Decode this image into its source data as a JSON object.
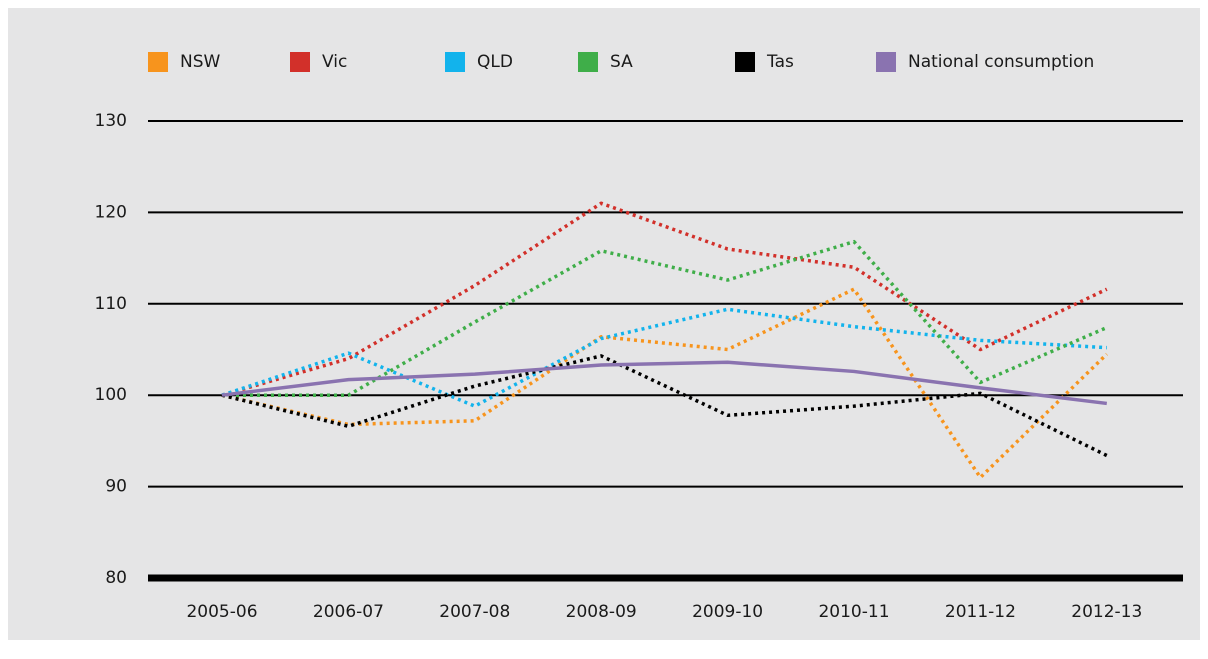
{
  "chart_data": {
    "type": "line",
    "categories": [
      "2005-06",
      "2006-07",
      "2007-08",
      "2008-09",
      "2009-10",
      "2010-11",
      "2011-12",
      "2012-13"
    ],
    "series": [
      {
        "name": "NSW",
        "color": "#f7941d",
        "dashed": true,
        "values": [
          100,
          96.8,
          97.2,
          106.4,
          105,
          111.6,
          91,
          104.5
        ]
      },
      {
        "name": "Vic",
        "color": "#d2302a",
        "dashed": true,
        "values": [
          100,
          104,
          112,
          121,
          116,
          114,
          105,
          111.6
        ]
      },
      {
        "name": "QLD",
        "color": "#12b3ec",
        "dashed": true,
        "values": [
          100,
          104.6,
          98.8,
          106.2,
          109.4,
          107.5,
          106,
          105.2
        ]
      },
      {
        "name": "SA",
        "color": "#3fae49",
        "dashed": true,
        "values": [
          100,
          100,
          108,
          115.8,
          112.6,
          116.8,
          101.4,
          107.4
        ]
      },
      {
        "name": "Tas",
        "color": "#000000",
        "dashed": true,
        "values": [
          100,
          96.6,
          101,
          104.3,
          97.8,
          98.8,
          100.2,
          93.4
        ]
      },
      {
        "name": "National consumption",
        "color": "#8a73b0",
        "dashed": false,
        "values": [
          100,
          101.7,
          102.3,
          103.3,
          103.6,
          102.6,
          100.8,
          99.1
        ]
      }
    ],
    "ylim": [
      80,
      130
    ],
    "yticks": [
      80,
      90,
      100,
      110,
      120,
      130
    ],
    "grid": true
  }
}
